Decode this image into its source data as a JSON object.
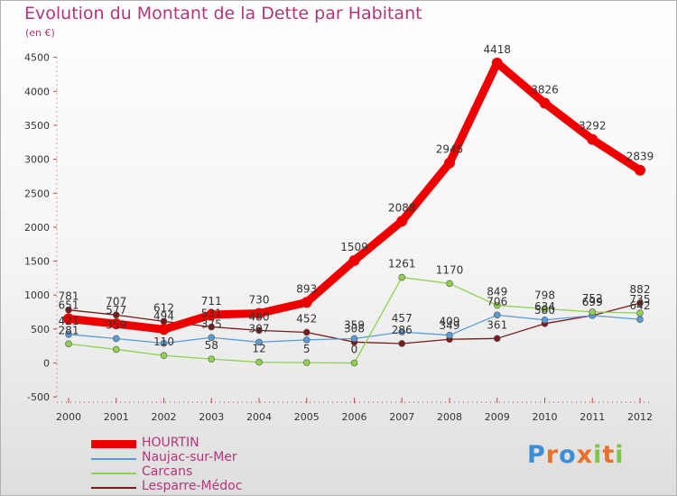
{
  "title": "Evolution du Montant de la Dette par Habitant",
  "unit": "(en €)",
  "brand": "Proxiti",
  "chart_data": {
    "type": "line",
    "x": [
      "2000",
      "2001",
      "2002",
      "2003",
      "2004",
      "2005",
      "2006",
      "2007",
      "2008",
      "2009",
      "2010",
      "2011",
      "2012"
    ],
    "yticks": [
      -500,
      0,
      500,
      1000,
      1500,
      2000,
      2500,
      3000,
      3500,
      4000,
      4500
    ],
    "ylim": [
      -500,
      4500
    ],
    "grid": false,
    "legend_position": "bottom-left",
    "series": [
      {
        "name": "HOURTIN",
        "color": "#ee0000",
        "values": [
          651,
          577,
          494,
          711,
          730,
          893,
          1509,
          2088,
          2945,
          4418,
          3826,
          3292,
          2839
        ],
        "labels": [
          "651",
          "577",
          "494",
          "711",
          "730",
          "893",
          "1509",
          "2088",
          "2945",
          "4418",
          "3826",
          "3292",
          "2839"
        ]
      },
      {
        "name": "Naujac-sur-Mer",
        "color": "#5b9bd5",
        "values": [
          421,
          359,
          290,
          375,
          307,
          340,
          359,
          457,
          409,
          706,
          634,
          699,
          642
        ],
        "labels": [
          "421",
          "359",
          "",
          "375",
          "307",
          "",
          "359",
          "457",
          "409",
          "706",
          "634",
          "699",
          "642"
        ]
      },
      {
        "name": "Carcans",
        "color": "#8fd14f",
        "values": [
          281,
          200,
          110,
          58,
          12,
          5,
          0,
          1261,
          1170,
          849,
          798,
          752,
          735
        ],
        "labels": [
          "281",
          "",
          "110",
          "58",
          "12",
          "5",
          "0",
          "1261",
          "1170",
          "849",
          "798",
          "752",
          "735"
        ]
      },
      {
        "name": "Lesparre-Médoc",
        "color": "#7a1a1a",
        "values": [
          781,
          707,
          612,
          531,
          480,
          452,
          308,
          286,
          349,
          361,
          580,
          699,
          882
        ],
        "labels": [
          "781",
          "707",
          "612",
          "531",
          "480",
          "452",
          "308",
          "286",
          "349",
          "361",
          "580",
          "699",
          "882"
        ]
      }
    ]
  }
}
